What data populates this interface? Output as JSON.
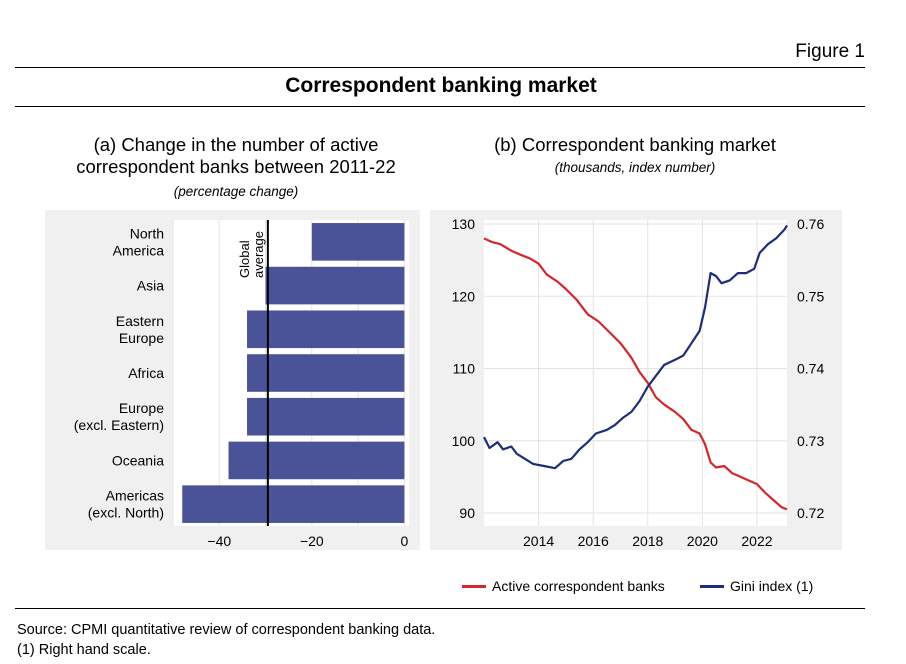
{
  "figure_label": "Figure 1",
  "title": "Correspondent banking market",
  "colors": {
    "bar": "#4a5298",
    "red_line": "#d4262b",
    "blue_line": "#1c2d7a",
    "panel_bg": "#f0f0f0"
  },
  "panel_a": {
    "title_line1": "(a) Change in the number of active",
    "title_line2": "correspondent banks between 2011-22",
    "subtitle": "(percentage change)",
    "reference_label_line1": "Global",
    "reference_label_line2": "average"
  },
  "panel_b": {
    "title": "(b) Correspondent banking market",
    "subtitle": "(thousands, index number)"
  },
  "legend": {
    "red": "Active correspondent banks",
    "blue": "Gini index (1)"
  },
  "footer": {
    "source": "Source: CPMI quantitative review of correspondent banking data.",
    "note": "(1) Right hand scale."
  },
  "chart_data": [
    {
      "type": "bar",
      "orientation": "horizontal",
      "categories": [
        [
          "North",
          "America"
        ],
        [
          "Asia"
        ],
        [
          "Eastern",
          "Europe"
        ],
        [
          "Africa"
        ],
        [
          "Europe",
          "(excl. Eastern)"
        ],
        [
          "Oceania"
        ],
        [
          "Americas",
          "(excl. North)"
        ]
      ],
      "values": [
        -20,
        -30,
        -34,
        -34,
        -34,
        -38,
        -48
      ],
      "reference_line": {
        "value": -29.5,
        "label": "Global average"
      },
      "xlim": [
        -50,
        1
      ],
      "xticks": [
        -40,
        -20,
        0
      ],
      "xtick_labels": [
        "−40",
        "−20",
        "0"
      ],
      "grid": true
    },
    {
      "type": "line",
      "x_range": [
        2012.0,
        2023.1
      ],
      "xticks": [
        2014,
        2016,
        2018,
        2020,
        2022
      ],
      "y_left": {
        "ylim": [
          90,
          130
        ],
        "ticks": [
          90,
          100,
          110,
          120,
          130
        ]
      },
      "y_right": {
        "ylim": [
          0.72,
          0.76
        ],
        "ticks": [
          "0.72",
          "0.73",
          "0.74",
          "0.75",
          "0.76"
        ]
      },
      "grid": true,
      "series": [
        {
          "name": "Active correspondent banks",
          "axis": "left",
          "color": "#d4262b",
          "points": [
            [
              2012.0,
              128
            ],
            [
              2012.3,
              127.5
            ],
            [
              2012.6,
              127.2
            ],
            [
              2013.0,
              126.3
            ],
            [
              2013.3,
              125.8
            ],
            [
              2013.7,
              125.2
            ],
            [
              2014.0,
              124.5
            ],
            [
              2014.3,
              123
            ],
            [
              2014.7,
              122
            ],
            [
              2015.0,
              121
            ],
            [
              2015.4,
              119.5
            ],
            [
              2015.8,
              117.5
            ],
            [
              2016.2,
              116.5
            ],
            [
              2016.6,
              115
            ],
            [
              2017.0,
              113.5
            ],
            [
              2017.4,
              111.5
            ],
            [
              2017.7,
              109.5
            ],
            [
              2018.0,
              108
            ],
            [
              2018.3,
              106
            ],
            [
              2018.6,
              105
            ],
            [
              2019.0,
              104
            ],
            [
              2019.3,
              103
            ],
            [
              2019.6,
              101.5
            ],
            [
              2019.9,
              101
            ],
            [
              2020.1,
              99.5
            ],
            [
              2020.3,
              97
            ],
            [
              2020.5,
              96.3
            ],
            [
              2020.8,
              96.5
            ],
            [
              2021.1,
              95.5
            ],
            [
              2021.4,
              95
            ],
            [
              2021.7,
              94.5
            ],
            [
              2022.0,
              94
            ],
            [
              2022.3,
              92.8
            ],
            [
              2022.6,
              91.8
            ],
            [
              2022.9,
              90.8
            ],
            [
              2023.1,
              90.5
            ]
          ]
        },
        {
          "name": "Gini index (1)",
          "axis": "right",
          "color": "#1c2d7a",
          "points": [
            [
              2012.0,
              0.7305
            ],
            [
              2012.2,
              0.729
            ],
            [
              2012.5,
              0.7298
            ],
            [
              2012.7,
              0.7288
            ],
            [
              2013.0,
              0.7292
            ],
            [
              2013.2,
              0.7282
            ],
            [
              2013.5,
              0.7275
            ],
            [
              2013.8,
              0.7268
            ],
            [
              2014.2,
              0.7265
            ],
            [
              2014.6,
              0.7262
            ],
            [
              2014.9,
              0.7272
            ],
            [
              2015.2,
              0.7275
            ],
            [
              2015.5,
              0.7288
            ],
            [
              2015.8,
              0.7298
            ],
            [
              2016.1,
              0.731
            ],
            [
              2016.5,
              0.7315
            ],
            [
              2016.8,
              0.7322
            ],
            [
              2017.1,
              0.7332
            ],
            [
              2017.4,
              0.734
            ],
            [
              2017.7,
              0.7355
            ],
            [
              2018.0,
              0.7375
            ],
            [
              2018.3,
              0.739
            ],
            [
              2018.6,
              0.7405
            ],
            [
              2019.0,
              0.7412
            ],
            [
              2019.3,
              0.7418
            ],
            [
              2019.6,
              0.7435
            ],
            [
              2019.9,
              0.7452
            ],
            [
              2020.1,
              0.7485
            ],
            [
              2020.3,
              0.7532
            ],
            [
              2020.5,
              0.7528
            ],
            [
              2020.7,
              0.7518
            ],
            [
              2021.0,
              0.7522
            ],
            [
              2021.3,
              0.7532
            ],
            [
              2021.6,
              0.7532
            ],
            [
              2021.9,
              0.7538
            ],
            [
              2022.1,
              0.756
            ],
            [
              2022.4,
              0.7572
            ],
            [
              2022.7,
              0.758
            ],
            [
              2023.0,
              0.7592
            ],
            [
              2023.1,
              0.7598
            ]
          ]
        }
      ]
    }
  ]
}
